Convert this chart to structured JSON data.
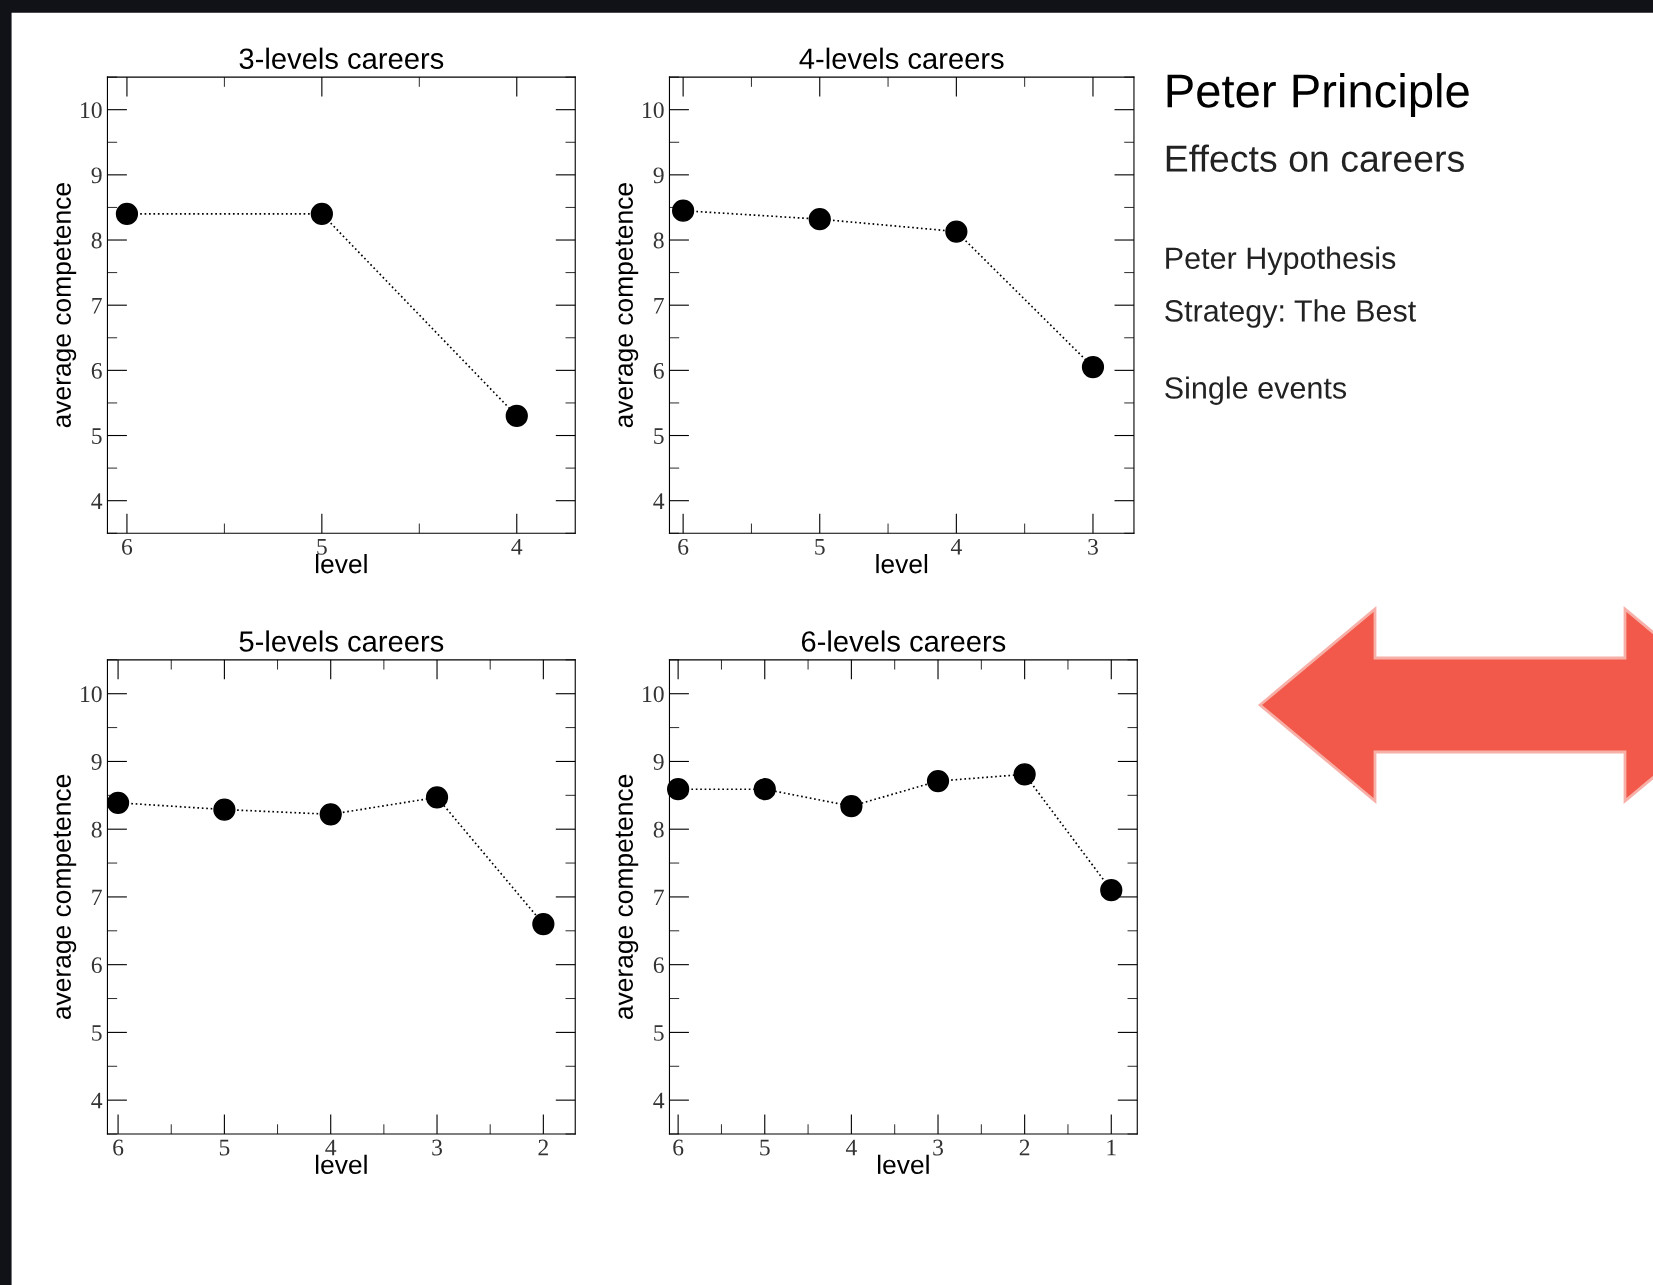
{
  "chart_data": [
    {
      "type": "line",
      "title": "3-levels careers",
      "xlabel": "level",
      "ylabel": "average competence",
      "x": [
        6,
        5,
        4
      ],
      "xlim": [
        6.1,
        3.7
      ],
      "xticks": [
        6,
        5,
        4
      ],
      "ylim": [
        3.5,
        10.5
      ],
      "yticks": [
        4,
        5,
        6,
        7,
        8,
        9,
        10
      ],
      "grid": false,
      "legend": false,
      "marker": "circle",
      "line_style": "dotted",
      "series": [
        {
          "color": "#000000",
          "values": [
            8.4,
            8.4,
            5.3
          ]
        }
      ]
    },
    {
      "type": "line",
      "title": "4-levels careers",
      "xlabel": "level",
      "ylabel": "average competence",
      "x": [
        6,
        5,
        4,
        3
      ],
      "xlim": [
        6.1,
        2.7
      ],
      "xticks": [
        6,
        5,
        4,
        3
      ],
      "ylim": [
        3.5,
        10.5
      ],
      "yticks": [
        4,
        5,
        6,
        7,
        8,
        9,
        10
      ],
      "grid": false,
      "legend": false,
      "marker": "circle",
      "line_style": "dotted",
      "series": [
        {
          "color": "#000000",
          "values": [
            8.45,
            8.32,
            8.13,
            6.05
          ]
        }
      ]
    },
    {
      "type": "line",
      "title": "5-levels careers",
      "xlabel": "level",
      "ylabel": "average competence",
      "x": [
        6,
        5,
        4,
        3,
        2
      ],
      "xlim": [
        6.1,
        1.7
      ],
      "xticks": [
        6,
        5,
        4,
        3,
        2
      ],
      "ylim": [
        3.5,
        10.5
      ],
      "yticks": [
        4,
        5,
        6,
        7,
        8,
        9,
        10
      ],
      "grid": false,
      "legend": false,
      "marker": "circle",
      "line_style": "dotted",
      "series": [
        {
          "color": "#000000",
          "values": [
            8.39,
            8.29,
            8.22,
            8.47,
            6.6
          ]
        }
      ]
    },
    {
      "type": "line",
      "title": "6-levels careers",
      "xlabel": "level",
      "ylabel": "average competence",
      "x": [
        6,
        5,
        4,
        3,
        2,
        1
      ],
      "xlim": [
        6.1,
        0.7
      ],
      "xticks": [
        6,
        5,
        4,
        3,
        2,
        1
      ],
      "ylim": [
        3.5,
        10.5
      ],
      "yticks": [
        4,
        5,
        6,
        7,
        8,
        9,
        10
      ],
      "grid": false,
      "legend": false,
      "marker": "circle",
      "line_style": "dotted",
      "series": [
        {
          "color": "#000000",
          "values": [
            8.59,
            8.59,
            8.34,
            8.71,
            8.81,
            7.1
          ]
        }
      ]
    },
    {
      "type": "other",
      "title": "Peter Principle",
      "subtitle": "Effects on careers",
      "annotations": [
        "Peter Hypothesis",
        "Strategy: The Best",
        "Single events"
      ]
    }
  ]
}
